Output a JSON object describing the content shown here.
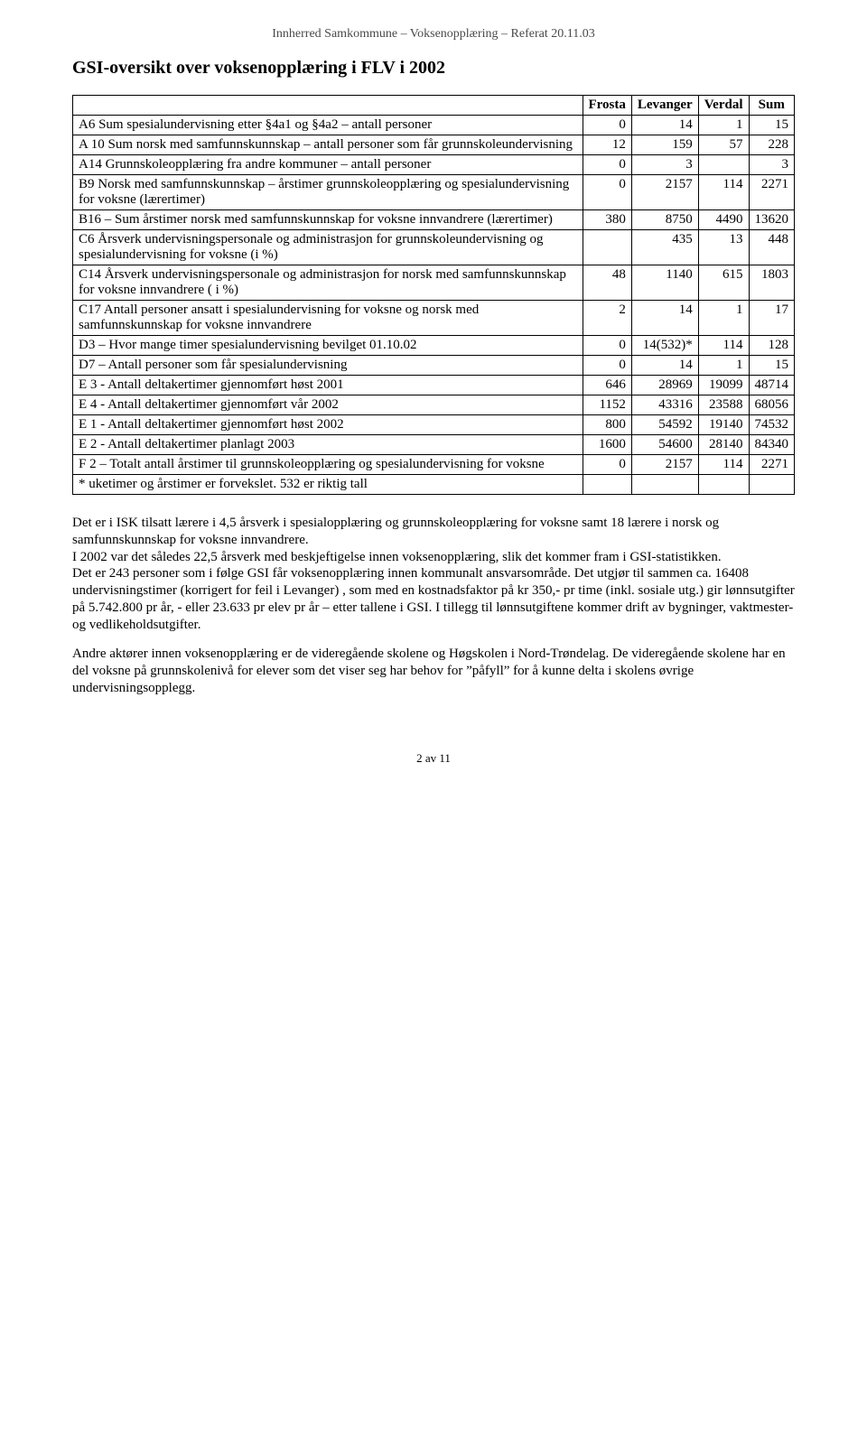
{
  "header": "Innherred Samkommune – Voksenopplæring – Referat 20.11.03",
  "section_title": "GSI-oversikt over voksenopplæring i FLV i 2002",
  "table": {
    "columns": [
      "",
      "Frosta",
      "Levanger",
      "Verdal",
      "Sum"
    ],
    "rows": [
      {
        "label": "A6 Sum spesialundervisning etter §4a1 og §4a2 – antall personer",
        "cells": [
          "0",
          "14",
          "1",
          "15"
        ]
      },
      {
        "label": "A 10 Sum norsk med samfunnskunnskap – antall personer som får grunnskoleundervisning",
        "cells": [
          "12",
          "159",
          "57",
          "228"
        ]
      },
      {
        "label": "A14 Grunnskoleopplæring fra andre kommuner – antall personer",
        "cells": [
          "0",
          "3",
          "",
          "3"
        ]
      },
      {
        "label": "B9 Norsk med samfunnskunnskap – årstimer grunnskoleopplæring og spesialundervisning for voksne (lærertimer)",
        "cells": [
          "0",
          "2157",
          "114",
          "2271"
        ]
      },
      {
        "label": "B16 – Sum årstimer norsk med samfunnskunnskap for voksne innvandrere (lærertimer)",
        "cells": [
          "380",
          "8750",
          "4490",
          "13620"
        ]
      },
      {
        "label": "C6 Årsverk  undervisningspersonale og administrasjon for grunnskoleundervisning og spesialundervisning for voksne (i %)",
        "cells": [
          "",
          "435",
          "13",
          "448"
        ]
      },
      {
        "label": "C14 Årsverk undervisningspersonale og administrasjon for norsk med samfunnskunnskap for voksne innvandrere ( i %)",
        "cells": [
          "48",
          "1140",
          "615",
          "1803"
        ]
      },
      {
        "label": "C17 Antall personer ansatt i spesialundervisning for voksne og norsk med samfunnskunnskap for voksne innvandrere",
        "cells": [
          "2",
          "14",
          "1",
          "17"
        ]
      },
      {
        "label": "D3 – Hvor mange timer spesialundervisning bevilget 01.10.02",
        "cells": [
          "0",
          "14(532)*",
          "114",
          "128"
        ]
      },
      {
        "label": "D7 – Antall personer som får spesialundervisning",
        "cells": [
          "0",
          "14",
          "1",
          "15"
        ]
      },
      {
        "label": "E 3 -  Antall deltakertimer gjennomført høst 2001",
        "cells": [
          "646",
          "28969",
          "19099",
          "48714"
        ]
      },
      {
        "label": "E 4 -  Antall deltakertimer gjennomført vår 2002",
        "cells": [
          "1152",
          "43316",
          "23588",
          "68056"
        ]
      },
      {
        "label": "E 1 -  Antall deltakertimer gjennomført høst 2002",
        "cells": [
          "800",
          "54592",
          "19140",
          "74532"
        ]
      },
      {
        "label": "E 2  -  Antall deltakertimer planlagt  2003",
        "cells": [
          "1600",
          "54600",
          "28140",
          "84340"
        ]
      },
      {
        "label": "F 2 – Totalt antall årstimer til grunnskoleopplæring og spesialundervisning for voksne",
        "cells": [
          "0",
          "2157",
          "114",
          "2271"
        ]
      },
      {
        "label": "* uketimer og årstimer er forvekslet. 532 er riktig tall",
        "cells": [
          "",
          "",
          "",
          ""
        ]
      }
    ]
  },
  "paragraphs": [
    "Det er i ISK tilsatt lærere i 4,5 årsverk i spesialopplæring og grunnskoleopplæring for voksne samt 18 lærere i norsk og samfunnskunnskap for voksne innvandrere.\nI 2002 var det således 22,5 årsverk med beskjeftigelse innen voksenopplæring, slik det kommer fram i GSI-statistikken.\nDet er 243 personer som i følge GSI får voksenopplæring innen kommunalt ansvarsområde. Det utgjør til sammen  ca. 16408 undervisningstimer (korrigert for feil i Levanger) , som med en kostnadsfaktor på kr 350,- pr time (inkl. sosiale utg.) gir lønnsutgifter på 5.742.800 pr år, - eller 23.633 pr elev pr år – etter tallene i GSI. I tillegg til lønnsutgiftene kommer drift av bygninger, vaktmester- og vedlikeholdsutgifter.",
    "Andre aktører innen voksenopplæring er de videregående skolene og Høgskolen i Nord-Trøndelag. De videregående skolene har en del voksne på grunnskolenivå for elever som det viser seg har behov for ”påfyll” for å kunne delta i skolens øvrige undervisningsopplegg."
  ],
  "footer": "2 av 11"
}
